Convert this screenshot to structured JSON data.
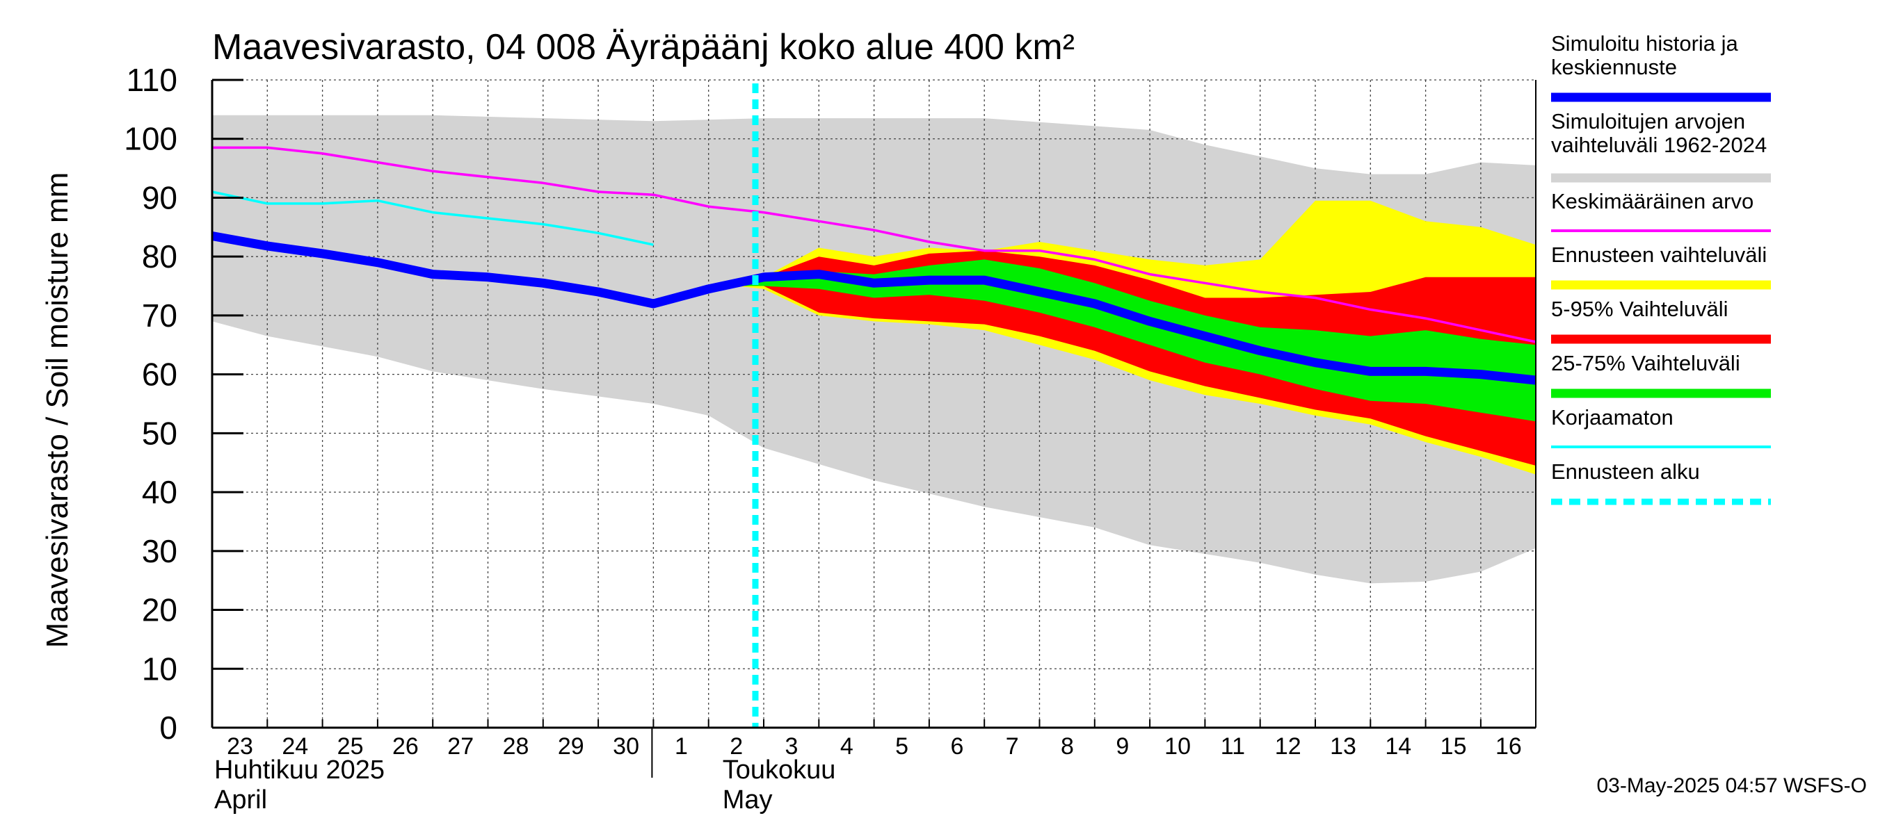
{
  "chart_data": {
    "type": "area",
    "title": "Maavesivarasto, 04 008 Äyräpäänj koko alue 400 km²",
    "ylabel": "Maavesivarasto / Soil moisture   mm",
    "ylim": [
      0,
      110
    ],
    "yticks": [
      0,
      10,
      20,
      30,
      40,
      50,
      60,
      70,
      80,
      90,
      100,
      110
    ],
    "grid": true,
    "x_day_index_range": [
      0,
      24
    ],
    "day_labels": [
      {
        "i": 0,
        "label": "23"
      },
      {
        "i": 1,
        "label": "24"
      },
      {
        "i": 2,
        "label": "25"
      },
      {
        "i": 3,
        "label": "26"
      },
      {
        "i": 4,
        "label": "27"
      },
      {
        "i": 5,
        "label": "28"
      },
      {
        "i": 6,
        "label": "29"
      },
      {
        "i": 7,
        "label": "30"
      },
      {
        "i": 8,
        "label": "1"
      },
      {
        "i": 9,
        "label": "2"
      },
      {
        "i": 10,
        "label": "3"
      },
      {
        "i": 11,
        "label": "4"
      },
      {
        "i": 12,
        "label": "5"
      },
      {
        "i": 13,
        "label": "6"
      },
      {
        "i": 14,
        "label": "7"
      },
      {
        "i": 15,
        "label": "8"
      },
      {
        "i": 16,
        "label": "9"
      },
      {
        "i": 17,
        "label": "10"
      },
      {
        "i": 18,
        "label": "11"
      },
      {
        "i": 19,
        "label": "12"
      },
      {
        "i": 20,
        "label": "13"
      },
      {
        "i": 21,
        "label": "14"
      },
      {
        "i": 22,
        "label": "15"
      },
      {
        "i": 23,
        "label": "16"
      }
    ],
    "month_separator_index": 8,
    "months": [
      {
        "i": 0,
        "fi": "Huhtikuu  2025",
        "en": "April"
      },
      {
        "i": 9,
        "fi": "Toukokuu",
        "en": "May"
      }
    ],
    "forecast_start_index": 10,
    "hist_range": {
      "upper": [
        [
          0,
          104
        ],
        [
          4,
          104
        ],
        [
          8,
          103
        ],
        [
          10,
          103.5
        ],
        [
          14,
          103.5
        ],
        [
          17,
          101.5
        ],
        [
          18,
          99
        ],
        [
          19,
          97
        ],
        [
          20,
          95
        ],
        [
          21,
          94
        ],
        [
          22,
          94
        ],
        [
          23,
          96
        ],
        [
          24,
          95.5
        ]
      ],
      "lower": [
        [
          0,
          69
        ],
        [
          1,
          66.5
        ],
        [
          3,
          63
        ],
        [
          4,
          60.5
        ],
        [
          6,
          57.5
        ],
        [
          8,
          55
        ],
        [
          9,
          53
        ],
        [
          10,
          47.5
        ],
        [
          12,
          42
        ],
        [
          14,
          37.5
        ],
        [
          16,
          34
        ],
        [
          17,
          31
        ],
        [
          19,
          28
        ],
        [
          20,
          26
        ],
        [
          21,
          24.5
        ],
        [
          22,
          24.8
        ],
        [
          23,
          26.5
        ],
        [
          24,
          30.5
        ]
      ]
    },
    "forecast_range": {
      "upper": [
        [
          9.5,
          75
        ],
        [
          10,
          76.5
        ],
        [
          11,
          81.5
        ],
        [
          12,
          80
        ],
        [
          13,
          81.5
        ],
        [
          14,
          81
        ],
        [
          15,
          82.5
        ],
        [
          16,
          81
        ],
        [
          17,
          79.5
        ],
        [
          18,
          78.5
        ],
        [
          19,
          79.5
        ],
        [
          20,
          89.5
        ],
        [
          21,
          89.5
        ],
        [
          22,
          86
        ],
        [
          23,
          85
        ],
        [
          24,
          82
        ]
      ],
      "lower": [
        [
          9.5,
          75
        ],
        [
          10,
          74.5
        ],
        [
          11,
          70
        ],
        [
          12,
          69
        ],
        [
          13,
          68.5
        ],
        [
          14,
          67.5
        ],
        [
          15,
          65
        ],
        [
          16,
          62.5
        ],
        [
          17,
          59
        ],
        [
          18,
          56.5
        ],
        [
          19,
          55
        ],
        [
          20,
          53
        ],
        [
          21,
          51.5
        ],
        [
          22,
          48.5
        ],
        [
          23,
          46
        ],
        [
          24,
          43
        ]
      ]
    },
    "p5_95": {
      "upper": [
        [
          9.5,
          75
        ],
        [
          10,
          76.5
        ],
        [
          11,
          80
        ],
        [
          12,
          78.5
        ],
        [
          13,
          80.5
        ],
        [
          14,
          81
        ],
        [
          15,
          80
        ],
        [
          16,
          78.5
        ],
        [
          17,
          76
        ],
        [
          18,
          73
        ],
        [
          19,
          73
        ],
        [
          20,
          73.5
        ],
        [
          21,
          74
        ],
        [
          22,
          76.5
        ],
        [
          23,
          76.5
        ],
        [
          24,
          76.5
        ]
      ],
      "lower": [
        [
          9.5,
          75
        ],
        [
          10,
          75
        ],
        [
          11,
          70.5
        ],
        [
          12,
          69.5
        ],
        [
          13,
          69
        ],
        [
          14,
          68.5
        ],
        [
          15,
          66.5
        ],
        [
          16,
          64
        ],
        [
          17,
          60.5
        ],
        [
          18,
          58
        ],
        [
          19,
          56
        ],
        [
          20,
          54
        ],
        [
          21,
          52.5
        ],
        [
          22,
          49.5
        ],
        [
          23,
          47
        ],
        [
          24,
          44.5
        ]
      ]
    },
    "p25_75": {
      "upper": [
        [
          9.5,
          75
        ],
        [
          10,
          76.5
        ],
        [
          11,
          77.5
        ],
        [
          12,
          77
        ],
        [
          13,
          78.5
        ],
        [
          14,
          79.5
        ],
        [
          15,
          78
        ],
        [
          16,
          75.5
        ],
        [
          17,
          72.5
        ],
        [
          18,
          70
        ],
        [
          19,
          68
        ],
        [
          20,
          67.5
        ],
        [
          21,
          66.5
        ],
        [
          22,
          67.5
        ],
        [
          23,
          66
        ],
        [
          24,
          65
        ]
      ],
      "lower": [
        [
          9.5,
          75
        ],
        [
          10,
          75
        ],
        [
          11,
          74.5
        ],
        [
          12,
          73
        ],
        [
          13,
          73.5
        ],
        [
          14,
          72.5
        ],
        [
          15,
          70.5
        ],
        [
          16,
          68
        ],
        [
          17,
          65
        ],
        [
          18,
          62
        ],
        [
          19,
          60
        ],
        [
          20,
          57.5
        ],
        [
          21,
          55.5
        ],
        [
          22,
          55
        ],
        [
          23,
          53.5
        ],
        [
          24,
          52
        ]
      ]
    },
    "series": [
      {
        "name": "Simuloitu historia ja keskiennuste",
        "color": "#0000ff",
        "points": [
          [
            0,
            83.5
          ],
          [
            1,
            81.8
          ],
          [
            2,
            80.5
          ],
          [
            3,
            79
          ],
          [
            4,
            77
          ],
          [
            5,
            76.5
          ],
          [
            6,
            75.5
          ],
          [
            7,
            74
          ],
          [
            8,
            72
          ],
          [
            9,
            74.5
          ],
          [
            10,
            76.5
          ],
          [
            11,
            77
          ],
          [
            12,
            75.5
          ],
          [
            13,
            76
          ],
          [
            14,
            76
          ],
          [
            15,
            74
          ],
          [
            16,
            72
          ],
          [
            17,
            69
          ],
          [
            18,
            66.5
          ],
          [
            19,
            64
          ],
          [
            20,
            62
          ],
          [
            21,
            60.5
          ],
          [
            22,
            60.5
          ],
          [
            23,
            60
          ],
          [
            24,
            59
          ]
        ]
      },
      {
        "name": "Keskimääräinen arvo",
        "color": "#ff00ff",
        "points": [
          [
            0,
            98.5
          ],
          [
            1,
            98.5
          ],
          [
            2,
            97.5
          ],
          [
            3,
            96
          ],
          [
            4,
            94.5
          ],
          [
            5,
            93.5
          ],
          [
            6,
            92.5
          ],
          [
            7,
            91
          ],
          [
            8,
            90.5
          ],
          [
            9,
            88.5
          ],
          [
            10,
            87.5
          ],
          [
            11,
            86
          ],
          [
            12,
            84.5
          ],
          [
            13,
            82.5
          ],
          [
            14,
            81
          ],
          [
            15,
            81
          ],
          [
            16,
            79.5
          ],
          [
            17,
            77
          ],
          [
            18,
            75.5
          ],
          [
            19,
            74
          ],
          [
            20,
            73
          ],
          [
            21,
            71
          ],
          [
            22,
            69.5
          ],
          [
            23,
            67.5
          ],
          [
            24,
            65.5
          ]
        ]
      },
      {
        "name": "Korjaamaton",
        "color": "#00ffff",
        "points": [
          [
            0,
            91
          ],
          [
            1,
            89
          ],
          [
            2,
            89
          ],
          [
            3,
            89.5
          ],
          [
            4,
            87.5
          ],
          [
            5,
            86.5
          ],
          [
            6,
            85.5
          ],
          [
            7,
            84
          ],
          [
            8,
            82
          ]
        ]
      }
    ],
    "legend": [
      {
        "label": "Simuloitu historia ja\nkeskiennuste",
        "color": "#0000ff",
        "style": "thick"
      },
      {
        "label": "Simuloitujen arvojen\nvaihteluväli 1962-2024",
        "color": "#d3d3d3",
        "style": "thick"
      },
      {
        "label": "Keskimääräinen arvo",
        "color": "#ff00ff",
        "style": "thin"
      },
      {
        "label": "Ennusteen vaihteluväli",
        "color": "#ffff00",
        "style": "thick"
      },
      {
        "label": "5-95% Vaihteluväli",
        "color": "#ff0000",
        "style": "thick"
      },
      {
        "label": "25-75% Vaihteluväli",
        "color": "#00ee00",
        "style": "thick"
      },
      {
        "label": "Korjaamaton",
        "color": "#00ffff",
        "style": "thin"
      },
      {
        "label": "Ennusteen alku",
        "color": "#00ffff",
        "style": "dashed"
      }
    ],
    "colors": {
      "hist_range": "#d3d3d3",
      "forecast_range": "#ffff00",
      "p5_95": "#ff0000",
      "p25_75": "#00ee00",
      "forecast_start": "#00ffff"
    },
    "footer": "03-May-2025 04:57 WSFS-O"
  }
}
